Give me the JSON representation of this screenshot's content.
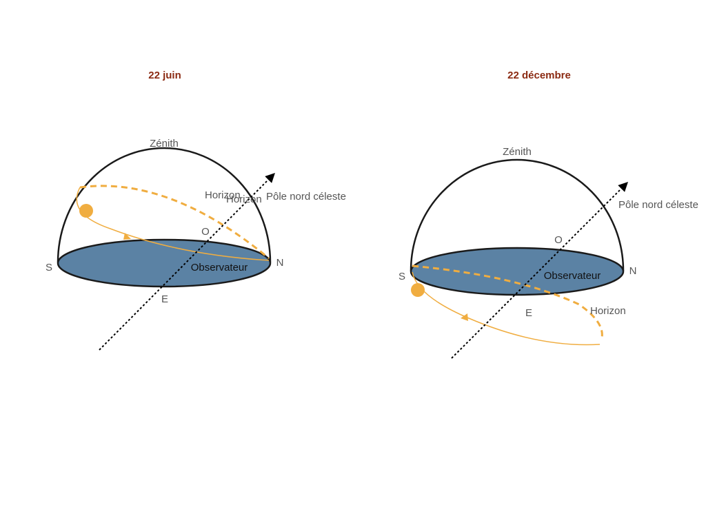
{
  "colors": {
    "title": "#8b2a12",
    "label": "#555555",
    "observer_label": "#111111",
    "disk_fill": "#5b82a4",
    "outline": "#1a1a1a",
    "sun": "#f0ad40",
    "axis": "#000000"
  },
  "june": {
    "title": "22 juin",
    "zenith": "Zénith",
    "pole": "Pôle nord céleste",
    "horizon_a": "Horizon",
    "horizon_b": "Horizon",
    "west": "O",
    "east": "E",
    "south": "S",
    "north": "N",
    "observer": "Observateur"
  },
  "december": {
    "title": "22 décembre",
    "zenith": "Zénith",
    "pole": "Pôle nord céleste",
    "horizon": "Horizon",
    "west": "O",
    "east": "E",
    "south": "S",
    "north": "N",
    "observer": "Observateur"
  }
}
